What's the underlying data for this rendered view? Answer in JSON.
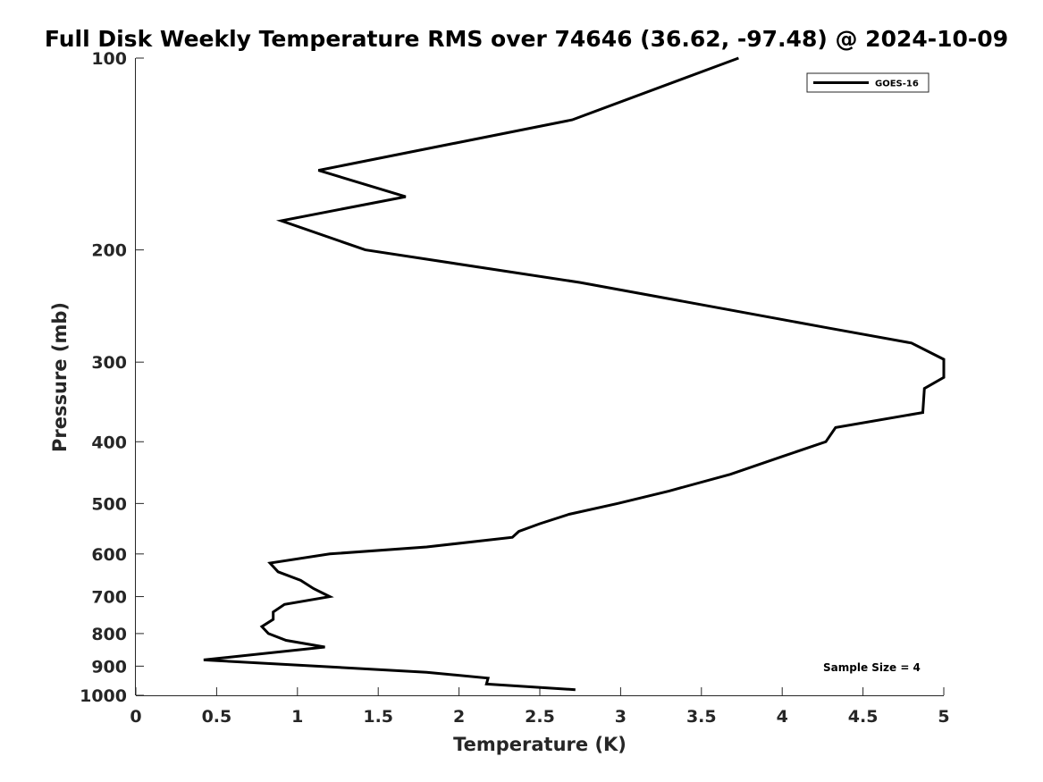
{
  "chart_data": {
    "type": "line",
    "title": "Full Disk Weekly Temperature RMS over 74646 (36.62, -97.48) @ 2024-10-09",
    "xlabel": "Temperature (K)",
    "ylabel": "Pressure (mb)",
    "xlim": [
      0,
      5
    ],
    "ylim": [
      100,
      1000
    ],
    "yscale": "log",
    "yreversed": true,
    "grid": false,
    "legend_position": "top-right",
    "x_ticks": [
      "0",
      "0.5",
      "1",
      "1.5",
      "2",
      "2.5",
      "3",
      "3.5",
      "4",
      "4.5",
      "5"
    ],
    "x_tick_values": [
      0,
      0.5,
      1,
      1.5,
      2,
      2.5,
      3,
      3.5,
      4,
      4.5,
      5
    ],
    "y_ticks": [
      "100",
      "200",
      "300",
      "400",
      "500",
      "600",
      "700",
      "800",
      "900",
      "1000"
    ],
    "y_tick_values": [
      100,
      200,
      300,
      400,
      500,
      600,
      700,
      800,
      900,
      1000
    ],
    "series": [
      {
        "name": "GOES-16",
        "color": "#000000",
        "points": [
          [
            3.73,
            100
          ],
          [
            2.7,
            125
          ],
          [
            1.13,
            150
          ],
          [
            1.67,
            165
          ],
          [
            0.9,
            180
          ],
          [
            1.42,
            200
          ],
          [
            2.75,
            225
          ],
          [
            4.28,
            265
          ],
          [
            4.8,
            280
          ],
          [
            5.0,
            297
          ],
          [
            5.0,
            317
          ],
          [
            4.88,
            330
          ],
          [
            4.87,
            360
          ],
          [
            4.33,
            380
          ],
          [
            4.27,
            400
          ],
          [
            4.0,
            422
          ],
          [
            3.68,
            450
          ],
          [
            3.3,
            478
          ],
          [
            2.98,
            500
          ],
          [
            2.68,
            520
          ],
          [
            2.5,
            538
          ],
          [
            2.37,
            553
          ],
          [
            2.33,
            565
          ],
          [
            1.8,
            585
          ],
          [
            1.2,
            600
          ],
          [
            0.83,
            620
          ],
          [
            0.88,
            640
          ],
          [
            1.02,
            660
          ],
          [
            1.1,
            680
          ],
          [
            1.2,
            700
          ],
          [
            0.92,
            720
          ],
          [
            0.85,
            740
          ],
          [
            0.85,
            760
          ],
          [
            0.78,
            780
          ],
          [
            0.82,
            800
          ],
          [
            0.93,
            820
          ],
          [
            1.17,
            840
          ],
          [
            0.42,
            880
          ],
          [
            1.8,
            920
          ],
          [
            2.18,
            940
          ],
          [
            2.17,
            960
          ],
          [
            2.72,
            980
          ]
        ]
      }
    ],
    "annotation": "Sample Size = 4"
  }
}
